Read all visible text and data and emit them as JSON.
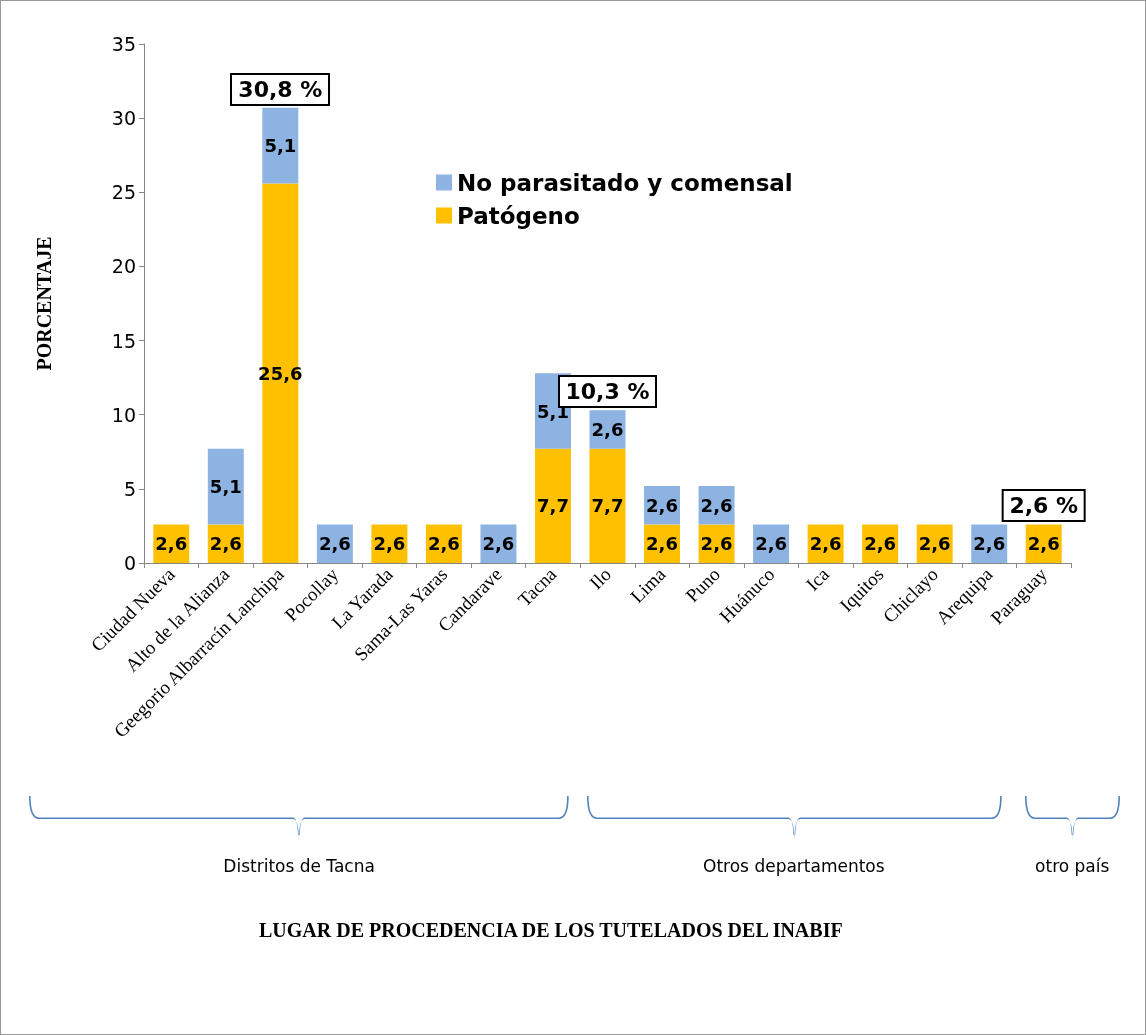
{
  "chart_data": {
    "type": "bar",
    "stacked": true,
    "ylabel": "PORCENTAJE",
    "categories": [
      "Ciudad Nueva",
      "Alto de la Alianza",
      "Geegorio Albarracín Lanchipa",
      "Pocollay",
      "La Yarada",
      "Sama-Las Yaras",
      "Candarave",
      "Tacna",
      "Ilo",
      "Lima",
      "Puno",
      "Huánuco",
      "Ica",
      "Iquitos",
      "Chiclayo",
      "Arequipa",
      "Paraguay"
    ],
    "series": [
      {
        "name": "Patógeno",
        "color": "#ffc000",
        "values": [
          2.6,
          2.6,
          25.6,
          null,
          2.6,
          2.6,
          null,
          7.7,
          7.7,
          2.6,
          2.6,
          null,
          2.6,
          2.6,
          2.6,
          null,
          2.6
        ],
        "value_labels": [
          "2,6",
          "2,6",
          "25,6",
          null,
          "2,6",
          "2,6",
          null,
          "7,7",
          "7,7",
          "2,6",
          "2,6",
          null,
          "2,6",
          "2,6",
          "2,6",
          null,
          "2,6"
        ]
      },
      {
        "name": "No parasitado y comensal",
        "color": "#8db3e2",
        "values": [
          null,
          5.1,
          5.1,
          2.6,
          null,
          null,
          2.6,
          5.1,
          2.6,
          2.6,
          2.6,
          2.6,
          null,
          null,
          null,
          2.6,
          null
        ],
        "value_labels": [
          null,
          "5,1",
          "5,1",
          "2,6",
          null,
          null,
          "2,6",
          "5,1",
          "2,6",
          "2,6",
          "2,6",
          "2,6",
          null,
          null,
          null,
          "2,6",
          null
        ]
      }
    ],
    "totals": [
      null,
      null,
      "30,8 %",
      null,
      null,
      null,
      null,
      null,
      "10,3 %",
      null,
      null,
      null,
      null,
      null,
      null,
      null,
      "2,6 %"
    ],
    "ylim": [
      0,
      35
    ],
    "yticks": [
      0,
      5,
      10,
      15,
      20,
      25,
      30,
      35
    ],
    "grid": false,
    "legend": "top",
    "annotations": [
      "Distritos de Tacna",
      "Otros departamentos",
      "otro país",
      "LUGAR DE PROCEDENCIA DE LOS TUTELADOS DEL INABIF"
    ]
  }
}
